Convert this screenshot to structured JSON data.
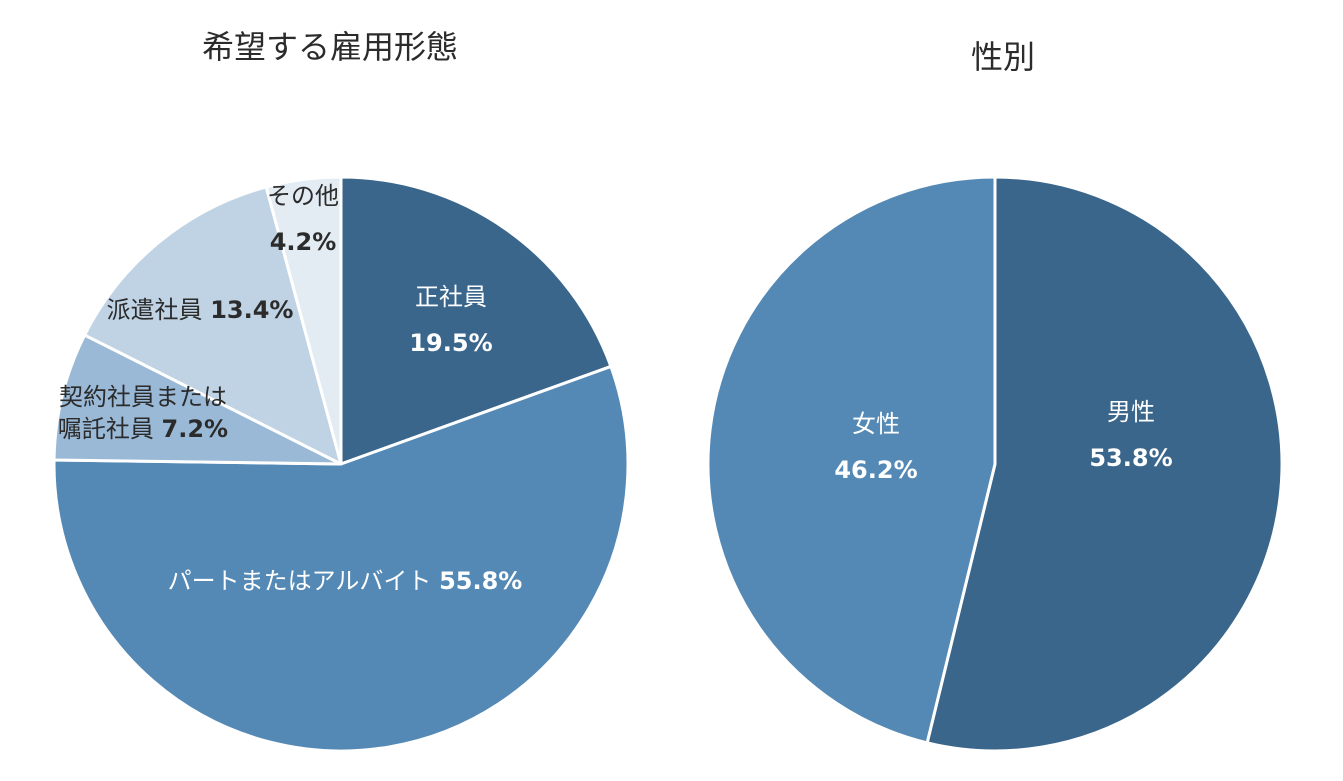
{
  "colors": {
    "dark": "#3a668c",
    "medium": "#5489b5",
    "light_blue": "#9ab9d6",
    "pale": "#bfd3e4",
    "palest": "#e3ebf3",
    "label_light": "#ffffff",
    "label_dark": "#2b2b2b"
  },
  "chart_data": [
    {
      "type": "pie",
      "title": "希望する雇用形態",
      "unit": "%",
      "slices": [
        {
          "name": "正社員",
          "value": 19.5,
          "value_label": "19.5%",
          "color": "#3a668c",
          "label_color": "#ffffff"
        },
        {
          "name": "パートまたはアルバイト",
          "value": 55.8,
          "value_label": "55.8%",
          "color": "#5489b5",
          "label_color": "#ffffff"
        },
        {
          "name": "契約社員または\n嘱託社員",
          "value": 7.2,
          "value_label": "7.2%",
          "color": "#9ab9d6",
          "label_color": "#2b2b2b"
        },
        {
          "name": "派遣社員",
          "value": 13.4,
          "value_label": "13.4%",
          "color": "#bfd3e4",
          "label_color": "#2b2b2b"
        },
        {
          "name": "その他",
          "value": 4.2,
          "value_label": "4.2%",
          "color": "#e3ebf3",
          "label_color": "#2b2b2b"
        }
      ]
    },
    {
      "type": "pie",
      "title": "性別",
      "unit": "%",
      "slices": [
        {
          "name": "男性",
          "value": 53.8,
          "value_label": "53.8%",
          "color": "#3a668c",
          "label_color": "#ffffff"
        },
        {
          "name": "女性",
          "value": 46.2,
          "value_label": "46.2%",
          "color": "#5489b5",
          "label_color": "#ffffff"
        }
      ]
    }
  ]
}
